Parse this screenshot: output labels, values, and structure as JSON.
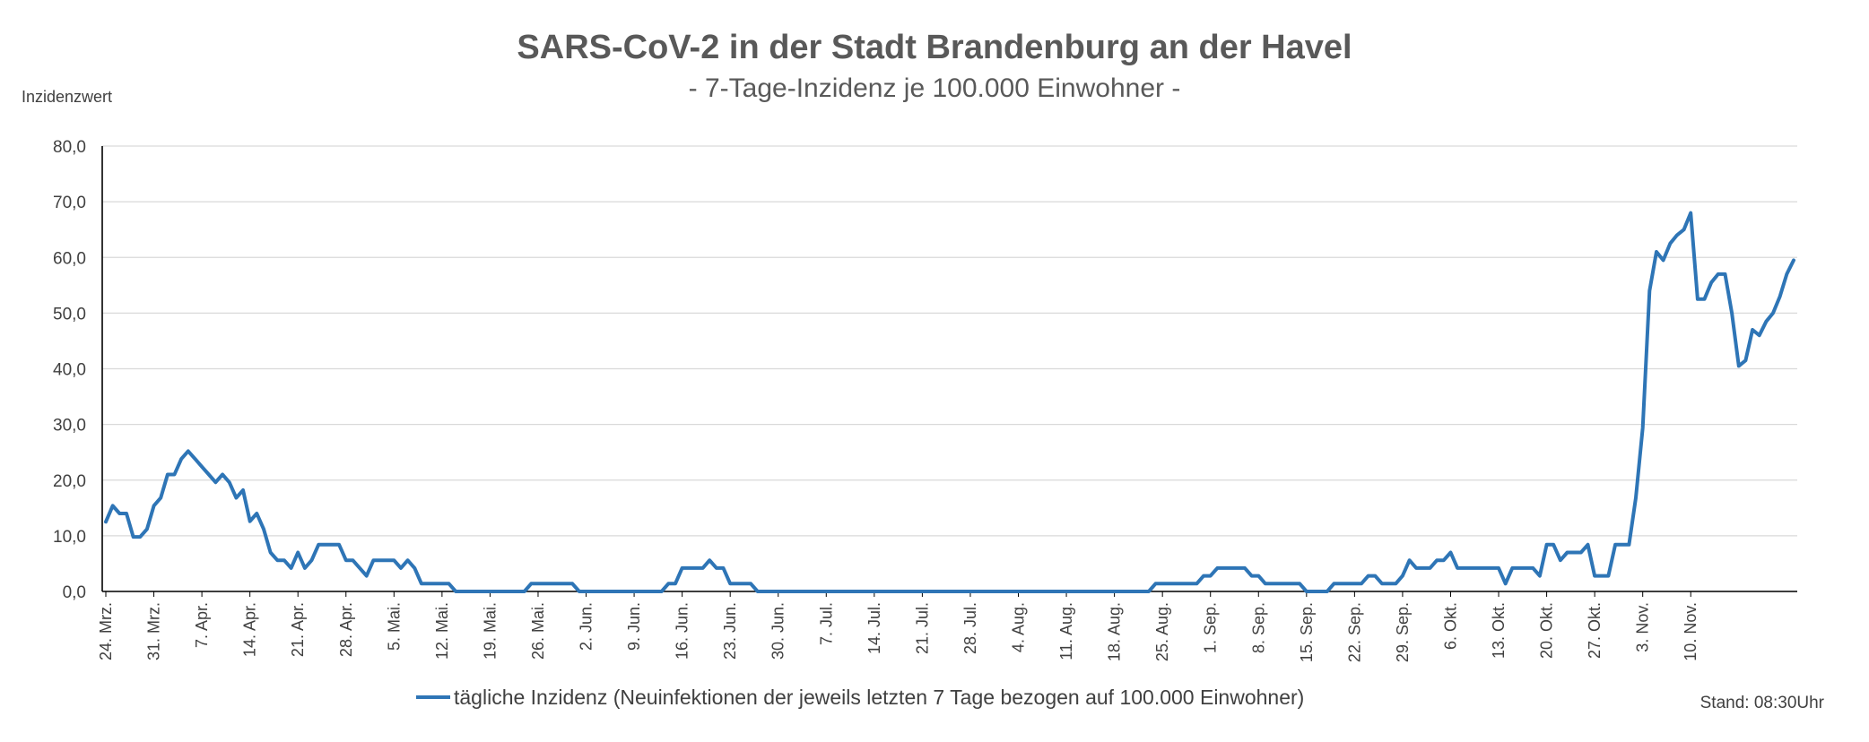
{
  "chart_data": {
    "type": "line",
    "title": "SARS-CoV-2 in der Stadt Brandenburg an der Havel",
    "subtitle": "- 7-Tage-Inzidenz je 100.000 Einwohner -",
    "ylabel": "Inzidenzwert",
    "xlabel": "",
    "ylim": [
      0,
      80
    ],
    "yticks": [
      "0,0",
      "10,0",
      "20,0",
      "30,0",
      "40,0",
      "50,0",
      "60,0",
      "70,0",
      "80,0"
    ],
    "ytick_values": [
      0,
      10,
      20,
      30,
      40,
      50,
      60,
      70,
      80
    ],
    "x_start_label": "24. Mrz.",
    "xtick_labels": [
      "24. Mrz.",
      "31. Mrz.",
      "7. Apr.",
      "14. Apr.",
      "21. Apr.",
      "28. Apr.",
      "5. Mai.",
      "12. Mai.",
      "19. Mai.",
      "26. Mai.",
      "2. Jun.",
      "9. Jun.",
      "16. Jun.",
      "23. Jun.",
      "30. Jun.",
      "7. Jul.",
      "14. Jul.",
      "21. Jul.",
      "28. Jul.",
      "4. Aug.",
      "11. Aug.",
      "18. Aug.",
      "25. Aug.",
      "1. Sep.",
      "8. Sep.",
      "15. Sep.",
      "22. Sep.",
      "29. Sep.",
      "6. Okt.",
      "13. Okt.",
      "20. Okt.",
      "27. Okt.",
      "3. Nov.",
      "10. Nov."
    ],
    "grid": true,
    "legend_position": "bottom",
    "series": [
      {
        "name": "tägliche Inzidenz (Neuinfektionen der jeweils letzten 7 Tage bezogen auf 100.000 Einwohner)",
        "color": "#2e75b6",
        "values": [
          12.5,
          15.4,
          14.0,
          14.0,
          9.8,
          9.8,
          11.2,
          15.4,
          16.8,
          21.0,
          21.0,
          23.8,
          25.2,
          23.8,
          22.4,
          21.0,
          19.6,
          21.0,
          19.6,
          16.8,
          18.2,
          12.6,
          14.0,
          11.2,
          7.0,
          5.6,
          5.6,
          4.2,
          7.0,
          4.2,
          5.6,
          8.4,
          8.4,
          8.4,
          8.4,
          5.6,
          5.6,
          4.2,
          2.8,
          5.6,
          5.6,
          5.6,
          5.6,
          4.2,
          5.6,
          4.2,
          1.4,
          1.4,
          1.4,
          1.4,
          1.4,
          0,
          0,
          0,
          0,
          0,
          0,
          0,
          0,
          0,
          0,
          0,
          1.4,
          1.4,
          1.4,
          1.4,
          1.4,
          1.4,
          1.4,
          0,
          0,
          0,
          0,
          0,
          0,
          0,
          0,
          0,
          0,
          0,
          0,
          0,
          1.4,
          1.4,
          4.2,
          4.2,
          4.2,
          4.2,
          5.6,
          4.2,
          4.2,
          1.4,
          1.4,
          1.4,
          1.4,
          0,
          0,
          0,
          0,
          0,
          0,
          0,
          0,
          0,
          0,
          0,
          0,
          0,
          0,
          0,
          0,
          0,
          0,
          0,
          0,
          0,
          0,
          0,
          0,
          0,
          0,
          0,
          0,
          0,
          0,
          0,
          0,
          0,
          0,
          0,
          0,
          0,
          0,
          0,
          0,
          0,
          0,
          0,
          0,
          0,
          0,
          0,
          0,
          0,
          0,
          0,
          0,
          0,
          0,
          0,
          0,
          0,
          0,
          1.4,
          1.4,
          1.4,
          1.4,
          1.4,
          1.4,
          1.4,
          2.8,
          2.8,
          4.2,
          4.2,
          4.2,
          4.2,
          4.2,
          2.8,
          2.8,
          1.4,
          1.4,
          1.4,
          1.4,
          1.4,
          1.4,
          0,
          0,
          0,
          0,
          1.4,
          1.4,
          1.4,
          1.4,
          1.4,
          2.8,
          2.8,
          1.4,
          1.4,
          1.4,
          2.8,
          5.6,
          4.2,
          4.2,
          4.2,
          5.6,
          5.6,
          7.0,
          4.2,
          4.2,
          4.2,
          4.2,
          4.2,
          4.2,
          4.2,
          1.4,
          4.2,
          4.2,
          4.2,
          4.2,
          2.8,
          8.4,
          8.4,
          5.6,
          7.0,
          7.0,
          7.0,
          8.4,
          2.8,
          2.8,
          2.8,
          8.4,
          8.4,
          8.4,
          16.8,
          29.4,
          54.0,
          61.0,
          59.5,
          62.5,
          64.0,
          65.0,
          68.0,
          52.5,
          52.5,
          55.5,
          57.0,
          57.0,
          50.0,
          40.5,
          41.5,
          47.0,
          46.0,
          48.5,
          50.0,
          53.0,
          57.0,
          59.5
        ]
      }
    ]
  },
  "stand": "Stand: 08:30Uhr"
}
